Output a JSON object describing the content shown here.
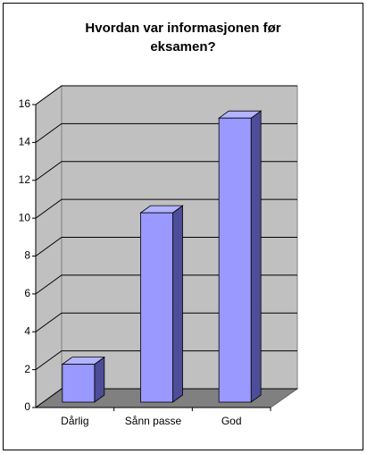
{
  "chart_data": {
    "type": "bar",
    "title": "Hvordan var informasjonen før eksamen?",
    "categories": [
      "Dårlig",
      "Sånn passe",
      "God"
    ],
    "values": [
      2,
      10,
      15
    ],
    "color": "#9999ff",
    "ylim": [
      0,
      16
    ],
    "yticks": [
      0,
      2,
      4,
      6,
      8,
      10,
      12,
      14,
      16
    ],
    "grid": true
  }
}
